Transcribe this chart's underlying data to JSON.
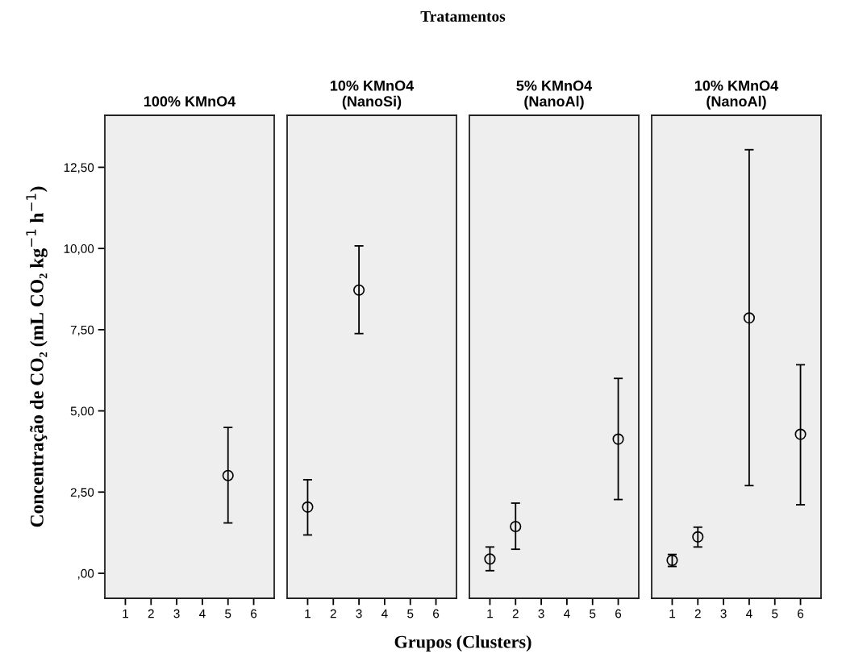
{
  "chart_data": [
    {
      "type": "scatter",
      "title": "100% KMnO4",
      "ylabel": "Concentração de CO₂ (mL CO₂ kg$^{−1}$ h$^{−1}$)",
      "annotations": [
        "Tratamentos",
        "Grupos (Clusters)"
      ],
      "x": [
        5
      ],
      "values": [
        3.01
      ],
      "errors": [
        [
          1.55,
          4.49
        ]
      ],
      "color": "#000000",
      "marker": "circle",
      "xlim": [
        0.2,
        6.8
      ],
      "xticks": [
        1,
        2,
        3,
        4,
        5,
        6
      ],
      "ylim": [
        -0.77,
        14.1
      ],
      "yticks": [
        {
          "value": 0,
          "label": ",00"
        },
        {
          "value": 2.5,
          "label": "2,50"
        },
        {
          "value": 5,
          "label": "5,00"
        },
        {
          "value": 7.5,
          "label": "7,50"
        },
        {
          "value": 10,
          "label": "10,00"
        },
        {
          "value": 12.5,
          "label": "12,50"
        }
      ],
      "grid": false,
      "legend": false
    },
    {
      "type": "scatter",
      "title": "10% KMnO4\n(NanoSi)",
      "x": [
        1,
        3
      ],
      "values": [
        2.04,
        8.72
      ],
      "errors": [
        [
          1.18,
          2.88
        ],
        [
          7.38,
          10.08
        ]
      ],
      "color": "#000000",
      "marker": "circle",
      "xlim": [
        0.2,
        6.8
      ],
      "xticks": [
        1,
        2,
        3,
        4,
        5,
        6
      ],
      "ylim": [
        -0.77,
        14.1
      ],
      "tick_labels": "x",
      "grid": false,
      "legend": false
    },
    {
      "type": "scatter",
      "title": "5% KMnO4\n(NanoAl)",
      "x": [
        1,
        2,
        6
      ],
      "values": [
        0.44,
        1.44,
        4.13
      ],
      "errors": [
        [
          0.08,
          0.81
        ],
        [
          0.74,
          2.16
        ],
        [
          2.27,
          6.0
        ]
      ],
      "color": "#000000",
      "marker": "circle",
      "xlim": [
        0.2,
        6.8
      ],
      "xticks": [
        1,
        2,
        3,
        4,
        5,
        6
      ],
      "ylim": [
        -0.77,
        14.1
      ],
      "tick_labels": "x",
      "grid": false,
      "legend": false
    },
    {
      "type": "scatter",
      "title": "10% KMnO4\n(NanoAl)",
      "x": [
        1,
        2,
        4,
        6
      ],
      "values": [
        0.4,
        1.12,
        7.86,
        4.28
      ],
      "errors": [
        [
          0.21,
          0.58
        ],
        [
          0.81,
          1.42
        ],
        [
          2.7,
          13.04
        ],
        [
          2.11,
          6.42
        ]
      ],
      "color": "#000000",
      "marker": "circle",
      "xlim": [
        0.2,
        6.8
      ],
      "xticks": [
        1,
        2,
        3,
        4,
        5,
        6
      ],
      "ylim": [
        -0.77,
        14.1
      ],
      "tick_labels": "x",
      "grid": false,
      "legend": false
    }
  ]
}
